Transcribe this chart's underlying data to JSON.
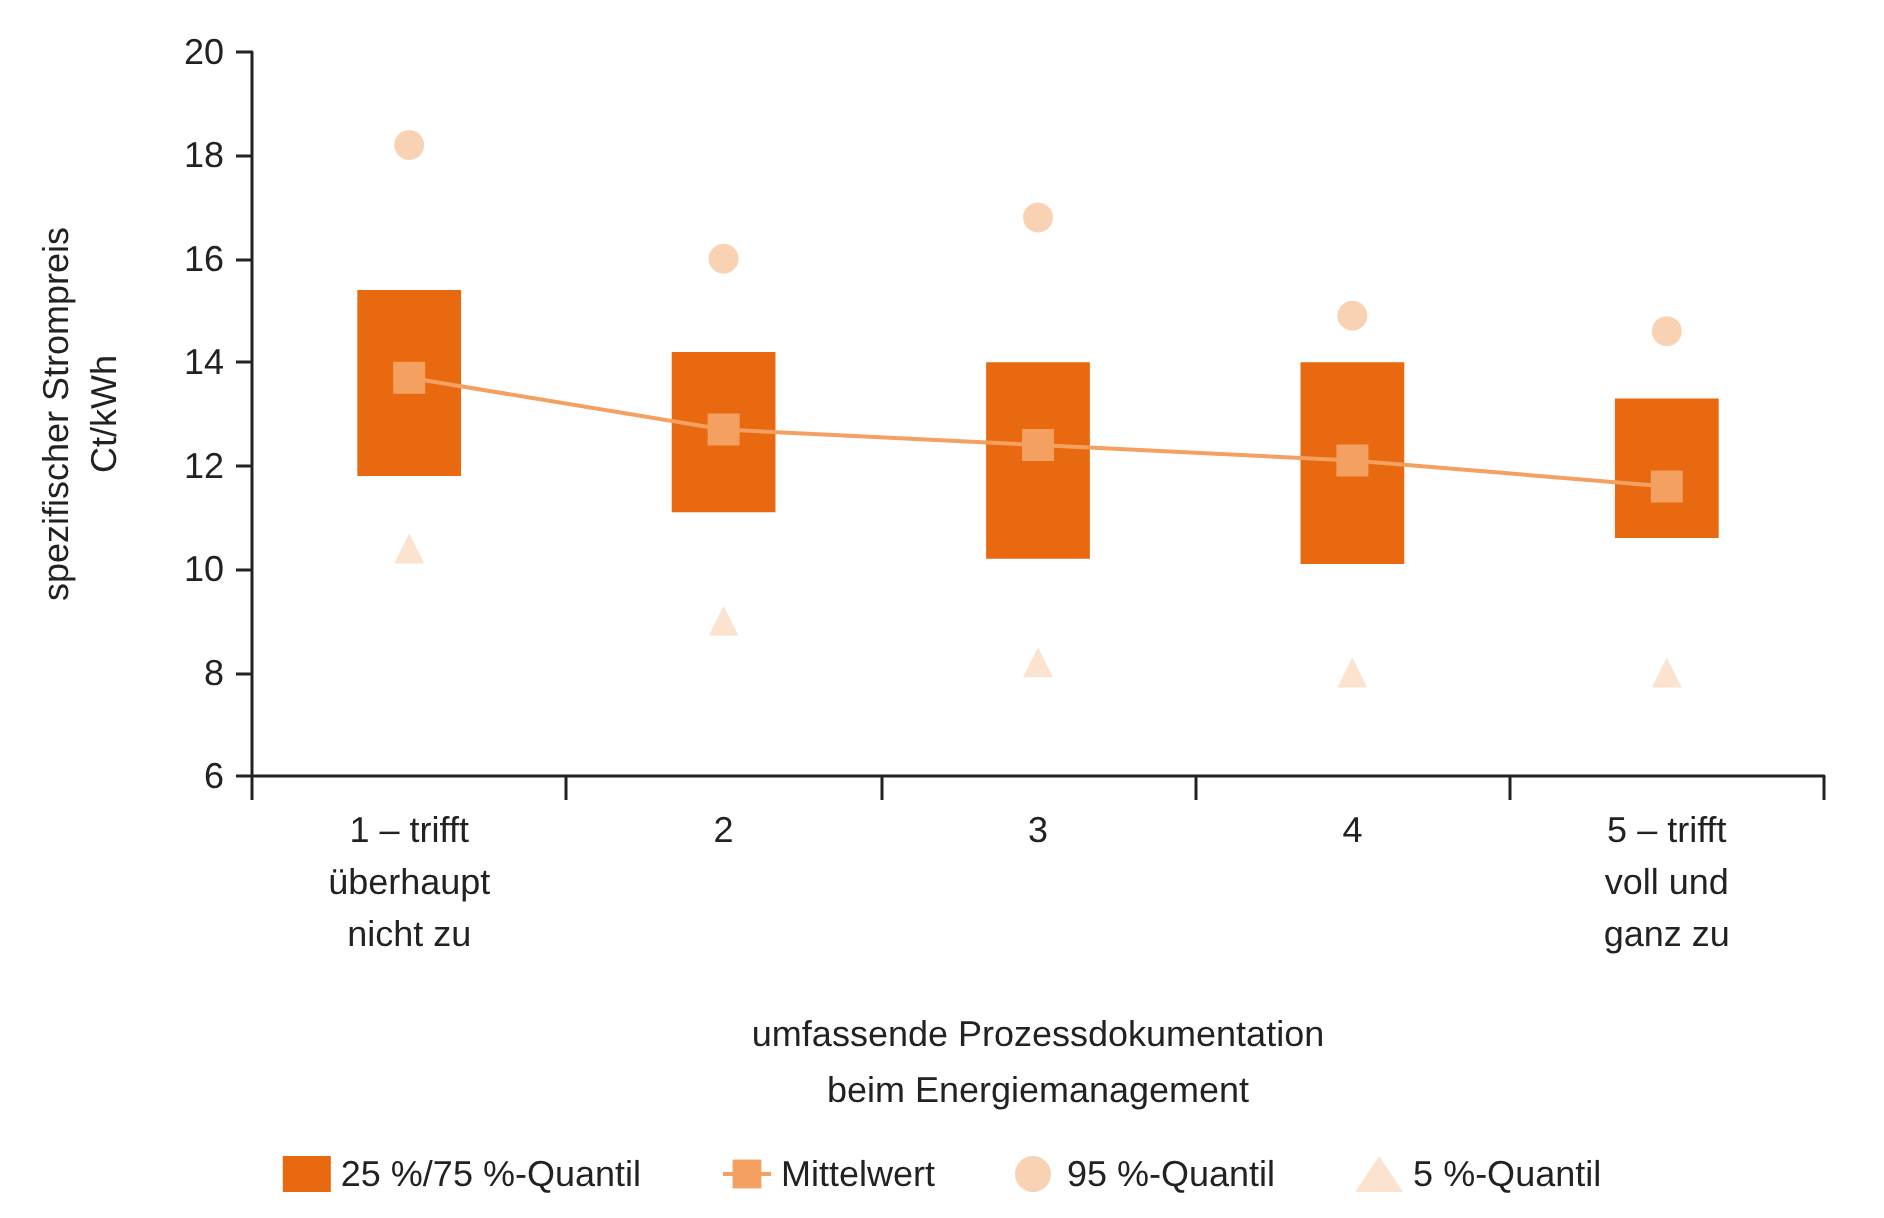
{
  "chart_data": {
    "type": "bar",
    "xlabel": "umfassende Prozessdokumentation\nbeim Energiemanagement",
    "ylabel": "spezifischer Strompreis\nCt/kWh",
    "categories": [
      "1 – trifft\nüberhaupt\nnicht zu",
      "2",
      "3",
      "4",
      "5 – trifft\nvoll und\nganz zu"
    ],
    "ylim": [
      6,
      20
    ],
    "yticks": [
      6,
      8,
      10,
      12,
      14,
      16,
      18,
      20
    ],
    "grid": false,
    "legend": "bottom",
    "series": [
      {
        "name": "25 %/75 %-Quantil",
        "color": "#e8690f",
        "base": [
          11.8,
          11.1,
          10.2,
          10.1,
          10.6
        ],
        "values": [
          3.6,
          3.1,
          3.8,
          3.9,
          2.7
        ]
      },
      {
        "type": "line",
        "name": "Mittelwert",
        "color": "#f4a061",
        "marker": "square",
        "values": [
          13.7,
          12.7,
          12.4,
          12.1,
          11.6
        ]
      },
      {
        "type": "scatter",
        "name": "95 %-Quantil",
        "color": "#f8c7a0",
        "marker": "circle",
        "values": [
          18.2,
          16.0,
          16.8,
          14.9,
          14.6
        ]
      },
      {
        "type": "scatter",
        "name": "5 %-Quantil",
        "color": "#fbdcc4",
        "marker": "triangle",
        "values": [
          10.4,
          9.0,
          8.2,
          8.0,
          8.0
        ]
      }
    ]
  }
}
